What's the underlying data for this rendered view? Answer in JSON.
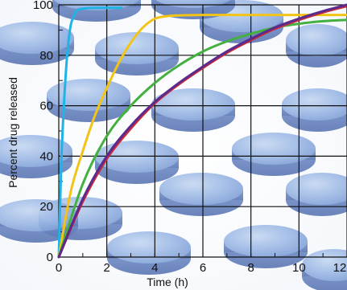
{
  "chart_data": {
    "type": "line",
    "title": "",
    "xlabel": "Time (h)",
    "ylabel": "Percent drug released",
    "xlim": [
      0,
      12
    ],
    "ylim": [
      0,
      100
    ],
    "x_ticks": [
      "0",
      "2",
      "4",
      "6",
      "8",
      "10",
      "12"
    ],
    "y_ticks": [
      "0",
      "20",
      "40",
      "60",
      "80",
      "100"
    ],
    "grid": true,
    "legend": "none",
    "background": "photo of blue tablets",
    "series": [
      {
        "color": "#1fb4e6",
        "x": [
          0,
          0.1,
          0.2,
          0.3,
          0.4,
          0.5,
          0.6,
          0.7,
          0.8,
          1.0,
          1.5,
          2.0,
          2.6
        ],
        "y": [
          0,
          36,
          58,
          74,
          85,
          92,
          95,
          97,
          98,
          98.5,
          98.8,
          98.8,
          98.8
        ]
      },
      {
        "color": "#f2c418",
        "x": [
          0,
          0.5,
          1.0,
          1.5,
          2.0,
          2.5,
          3.0,
          3.5,
          4.0,
          4.5,
          5.0,
          6.0,
          8.0,
          10.0,
          12.0
        ],
        "y": [
          0,
          26,
          42,
          56,
          67,
          77,
          85,
          91,
          94.5,
          95.5,
          95.8,
          96,
          96,
          96,
          96
        ]
      },
      {
        "color": "#43b040",
        "x": [
          0,
          1,
          2,
          3,
          4,
          5,
          6,
          7,
          8,
          9,
          10,
          11,
          12
        ],
        "y": [
          0,
          29,
          48,
          60,
          69,
          76,
          81.5,
          85.5,
          88.5,
          91,
          92.5,
          93.5,
          94
        ]
      },
      {
        "color": "#cc2a3a",
        "x": [
          0,
          1,
          2,
          3,
          4,
          5,
          6,
          7,
          8,
          9,
          10,
          11,
          12
        ],
        "y": [
          0,
          22,
          39,
          51,
          61,
          68.5,
          75,
          81,
          86,
          90.5,
          94,
          97,
          99.5
        ]
      },
      {
        "color": "#5a2a8c",
        "x": [
          0,
          1,
          2,
          3,
          4,
          5,
          6,
          7,
          8,
          9,
          10,
          11,
          12
        ],
        "y": [
          0,
          23,
          40,
          52,
          61.5,
          69,
          75.5,
          81.5,
          86.5,
          91,
          94.5,
          97.5,
          100
        ]
      }
    ]
  }
}
